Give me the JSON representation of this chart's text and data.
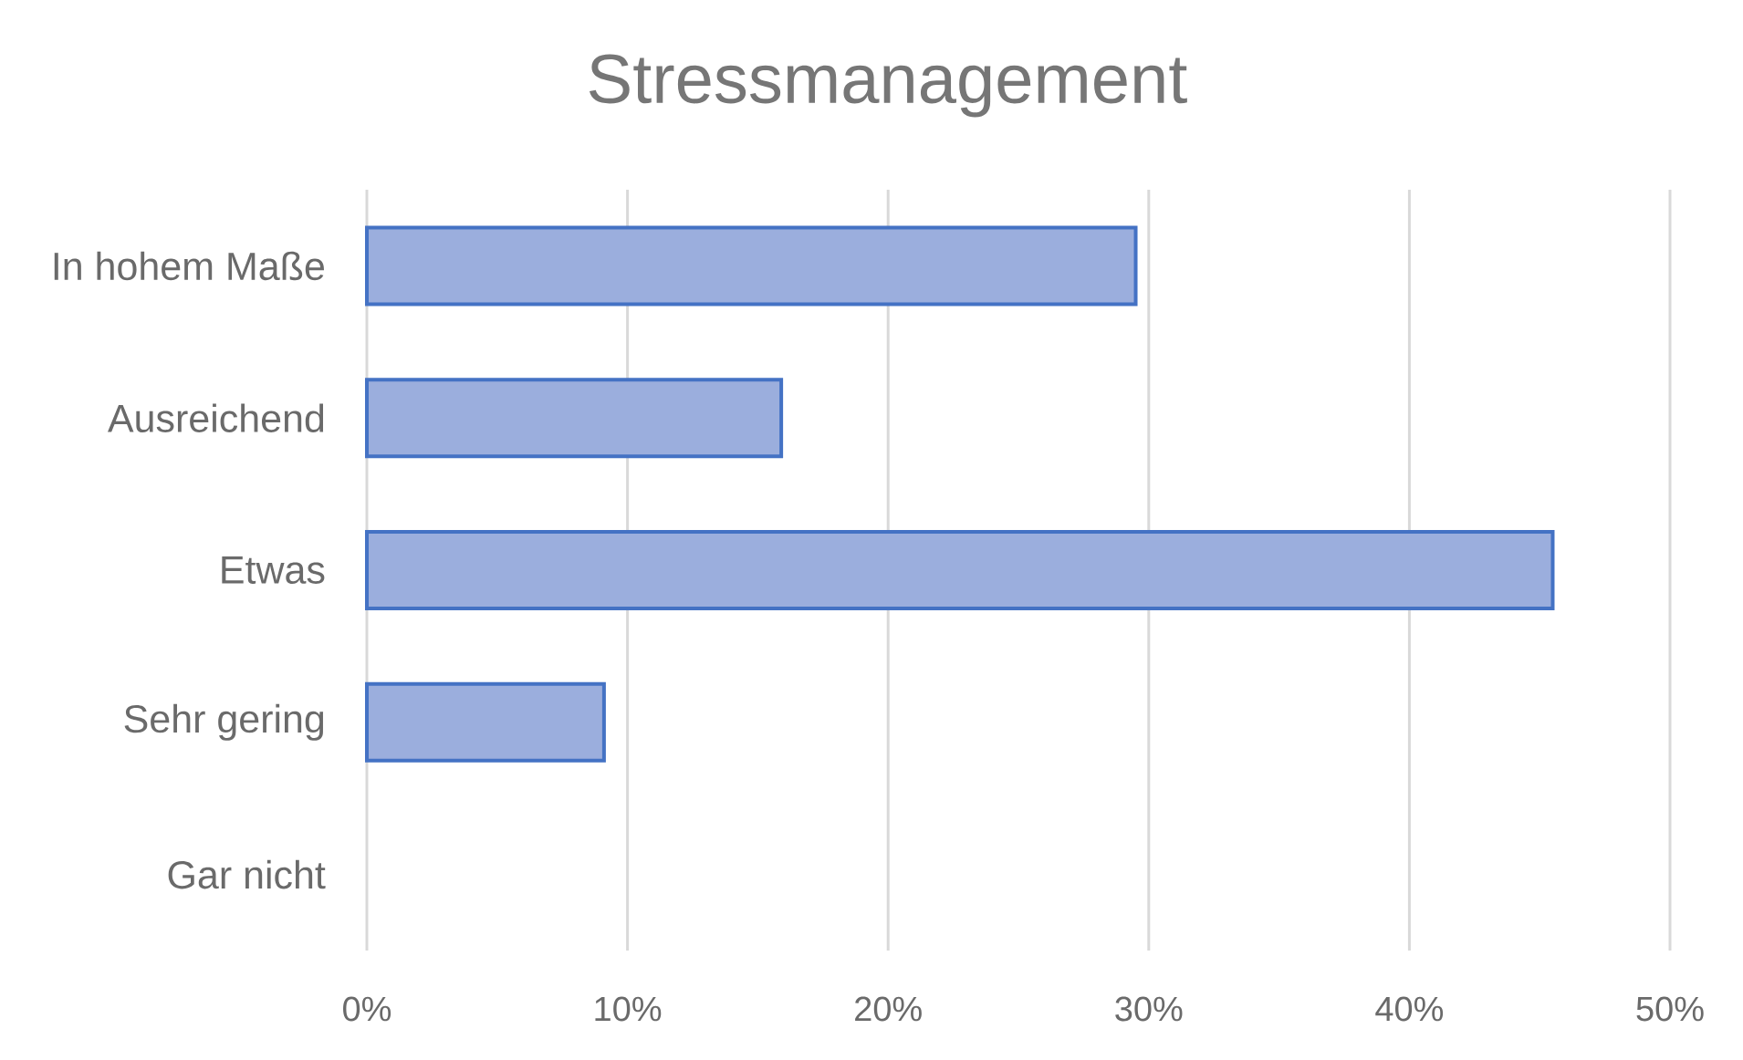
{
  "chart_data": {
    "type": "bar",
    "orientation": "horizontal",
    "title": "Stressmanagement",
    "categories": [
      "In hohem Maße",
      "Ausreichend",
      "Etwas",
      "Sehr gering",
      "Gar nicht"
    ],
    "values": [
      29.5,
      15.9,
      45.5,
      9.1,
      0
    ],
    "color": "#9baedd",
    "xlim": [
      0,
      50
    ],
    "xticks": [
      {
        "value": 0,
        "label": "0%"
      },
      {
        "value": 10,
        "label": "10%"
      },
      {
        "value": 20,
        "label": "20%"
      },
      {
        "value": 30,
        "label": "30%"
      },
      {
        "value": 40,
        "label": "40%"
      },
      {
        "value": 50,
        "label": "50%"
      }
    ],
    "grid": "x"
  }
}
